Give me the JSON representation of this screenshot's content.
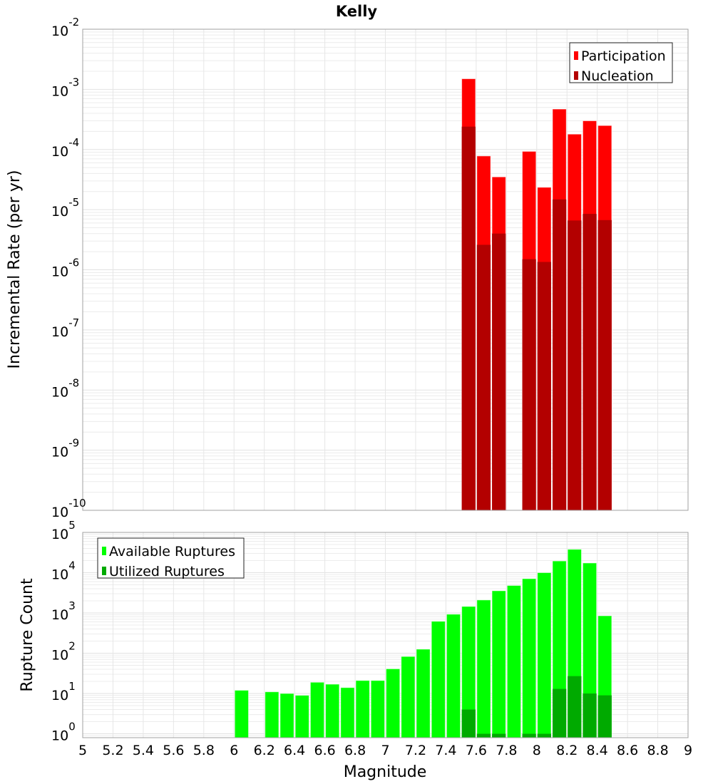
{
  "chart_data": [
    {
      "type": "bar",
      "title": "Kelly",
      "xlabel": "",
      "ylabel": "Incremental Rate (per yr)",
      "yscale": "log",
      "ylim": [
        1e-10,
        0.01
      ],
      "xlim": [
        5,
        9
      ],
      "grid": true,
      "legend_position": "top-right",
      "ytick_exponents": [
        -10,
        -9,
        -8,
        -7,
        -6,
        -5,
        -4,
        -3,
        -2
      ],
      "x": [
        7.55,
        7.65,
        7.75,
        7.95,
        8.05,
        8.15,
        8.25,
        8.35,
        8.45
      ],
      "series": [
        {
          "name": "Participation",
          "color": "#ff0000",
          "values": [
            0.0015,
            7.8e-05,
            3.5e-05,
            9.3e-05,
            2.35e-05,
            0.00047,
            0.00018,
            0.0003,
            0.00025
          ]
        },
        {
          "name": "Nucleation",
          "color": "#b30000",
          "values": [
            0.00024,
            2.6e-06,
            4e-06,
            1.5e-06,
            1.35e-06,
            1.48e-05,
            6.6e-06,
            8.5e-06,
            6.7e-06
          ]
        }
      ]
    },
    {
      "type": "bar",
      "title": "",
      "xlabel": "Magnitude",
      "ylabel": "Rupture Count",
      "yscale": "log",
      "ylim": [
        0.8,
        100000.0
      ],
      "xlim": [
        5,
        9
      ],
      "grid": true,
      "legend_position": "top-left",
      "ytick_exponents": [
        0,
        1,
        2,
        3,
        4,
        5
      ],
      "xticks": [
        "5",
        "5.2",
        "5.4",
        "5.6",
        "5.8",
        "6",
        "6.2",
        "6.4",
        "6.6",
        "6.8",
        "7",
        "7.2",
        "7.4",
        "7.6",
        "7.8",
        "8",
        "8.2",
        "8.4",
        "8.6",
        "8.8",
        "9"
      ],
      "x": [
        6.05,
        6.25,
        6.35,
        6.45,
        6.55,
        6.65,
        6.75,
        6.85,
        6.95,
        7.05,
        7.15,
        7.25,
        7.35,
        7.45,
        7.55,
        7.65,
        7.75,
        7.85,
        7.95,
        8.05,
        8.15,
        8.25,
        8.35,
        8.45
      ],
      "series": [
        {
          "name": "Available Ruptures",
          "color": "#00ff00",
          "values": [
            12,
            11,
            10,
            9,
            19,
            17,
            14,
            21,
            21,
            41,
            83,
            126,
            620,
            930,
            1450,
            2100,
            3550,
            4800,
            7100,
            10000,
            19500,
            38000,
            17400,
            850
          ]
        },
        {
          "name": "Utilized Ruptures",
          "color": "#00aa00",
          "values": [
            0,
            0,
            0,
            0,
            0,
            0,
            0,
            0,
            0,
            0,
            0,
            0,
            0,
            0,
            4,
            1,
            1,
            0,
            1,
            1,
            13,
            27,
            10,
            9
          ]
        }
      ]
    }
  ]
}
